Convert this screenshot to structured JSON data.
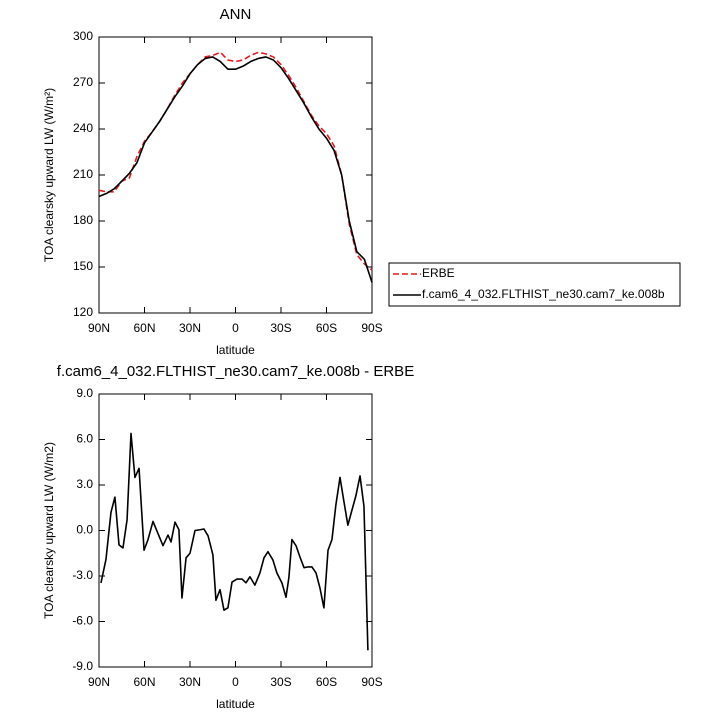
{
  "chart_data": [
    {
      "type": "line",
      "title": "ANN",
      "y_label": "TOA clearsky upward LW (W/m²)",
      "x_label": "latitude",
      "x": [
        90,
        85,
        80,
        75,
        70,
        65,
        60,
        55,
        50,
        45,
        40,
        35,
        30,
        25,
        20,
        15,
        10,
        5,
        0,
        -5,
        -10,
        -15,
        -20,
        -25,
        -30,
        -35,
        -40,
        -45,
        -50,
        -55,
        -60,
        -65,
        -70,
        -75,
        -80,
        -85,
        -90
      ],
      "series": [
        {
          "name": "ERBE",
          "color": "#e41a1c",
          "linestyle": "dashed",
          "values": [
            200,
            199,
            199,
            206,
            208,
            222,
            232,
            238,
            245,
            253,
            262,
            270,
            276,
            282,
            287,
            288,
            290,
            285,
            284,
            285,
            288,
            290,
            289,
            287,
            282,
            275,
            267,
            258,
            249,
            242,
            237,
            229,
            210,
            178,
            158,
            152,
            148
          ]
        },
        {
          "name": "f.cam6_4_032.FLTHIST_ne30.cam7_ke.008b",
          "color": "#000000",
          "linestyle": "solid",
          "values": [
            196,
            198,
            201,
            206,
            211,
            218,
            231,
            238,
            245,
            253,
            261,
            268,
            276,
            282,
            286,
            287,
            284,
            279,
            279,
            281,
            284,
            286,
            287,
            285,
            280,
            273,
            265,
            257,
            248,
            240,
            234,
            226,
            210,
            180,
            160,
            155,
            140
          ]
        }
      ],
      "xlim": [
        90,
        -90
      ],
      "xticks": [
        {
          "value": 90,
          "label": "90N"
        },
        {
          "value": 60,
          "label": "60N"
        },
        {
          "value": 30,
          "label": "30N"
        },
        0,
        {
          "value": -30,
          "label": "30S"
        },
        {
          "value": -60,
          "label": "60S"
        },
        {
          "value": -90,
          "label": "90S"
        }
      ],
      "ylim": [
        120,
        300
      ],
      "yticks": [
        120,
        150,
        180,
        210,
        240,
        270,
        300
      ],
      "legend": "right"
    },
    {
      "type": "line",
      "title": "f.cam6_4_032.FLTHIST_ne30.cam7_ke.008b - ERBE",
      "y_label": "TOA clearsky upward LW (W/m2)",
      "x_label": "latitude",
      "x": [
        88.7,
        85.4,
        82.1,
        79.5,
        76.8,
        74.2,
        71.5,
        68.9,
        66.3,
        63.6,
        60.3,
        57.7,
        54.4,
        51.1,
        47.8,
        44.5,
        42.5,
        39.9,
        37.3,
        35.3,
        32.6,
        30,
        26.7,
        23.4,
        20.8,
        18.1,
        14.9,
        12.9,
        10.2,
        7.6,
        5,
        2.3,
        -1,
        -4.3,
        -6.9,
        -9.5,
        -12.8,
        -16.1,
        -18.8,
        -21.4,
        -24.7,
        -27.3,
        -30.6,
        -33.3,
        -35.2,
        -37.2,
        -39.9,
        -42.5,
        -45.2,
        -47.8,
        -50.4,
        -53.1,
        -55.7,
        -58.3,
        -61,
        -63.6,
        -66.2,
        -68.9,
        -71.5,
        -74.1,
        -76.8,
        -79.4,
        -82.1,
        -84.7,
        -87.3
      ],
      "values": [
        -3.46,
        -1.9,
        1.2,
        2.2,
        -0.95,
        -1.15,
        0.7,
        6.4,
        3.5,
        4.1,
        -1.3,
        -0.6,
        0.6,
        -0.2,
        -1.0,
        -0.3,
        -0.75,
        0.55,
        0.05,
        -4.45,
        -1.8,
        -1.5,
        0.0,
        0.05,
        0.1,
        -0.35,
        -1.6,
        -4.6,
        -3.9,
        -5.25,
        -5.1,
        -3.4,
        -3.2,
        -3.2,
        -3.45,
        -3.05,
        -3.6,
        -2.8,
        -1.8,
        -1.4,
        -1.95,
        -2.8,
        -3.45,
        -4.4,
        -3.1,
        -0.6,
        -1.0,
        -1.75,
        -2.45,
        -2.4,
        -2.4,
        -2.8,
        -3.8,
        -5.1,
        -1.3,
        -0.6,
        1.7,
        3.5,
        1.9,
        0.35,
        1.35,
        2.3,
        3.6,
        1.6,
        -7.9
      ],
      "color": "#000000",
      "linestyle": "solid",
      "xlim": [
        90,
        -90
      ],
      "xticks": [
        {
          "value": 90,
          "label": "90N"
        },
        {
          "value": 60,
          "label": "60N"
        },
        {
          "value": 30,
          "label": "30N"
        },
        0,
        {
          "value": -30,
          "label": "30S"
        },
        {
          "value": -60,
          "label": "60S"
        },
        {
          "value": -90,
          "label": "90S"
        }
      ],
      "ylim": [
        -9,
        9
      ],
      "yticks": [
        {
          "value": -9,
          "label": "-9.0"
        },
        {
          "value": -6,
          "label": "-6.0"
        },
        {
          "value": -3,
          "label": "-3.0"
        },
        {
          "value": 0,
          "label": "0.0"
        },
        {
          "value": 3,
          "label": "3.0"
        },
        {
          "value": 6,
          "label": "6.0"
        },
        {
          "value": 9,
          "label": "9.0"
        }
      ]
    }
  ]
}
